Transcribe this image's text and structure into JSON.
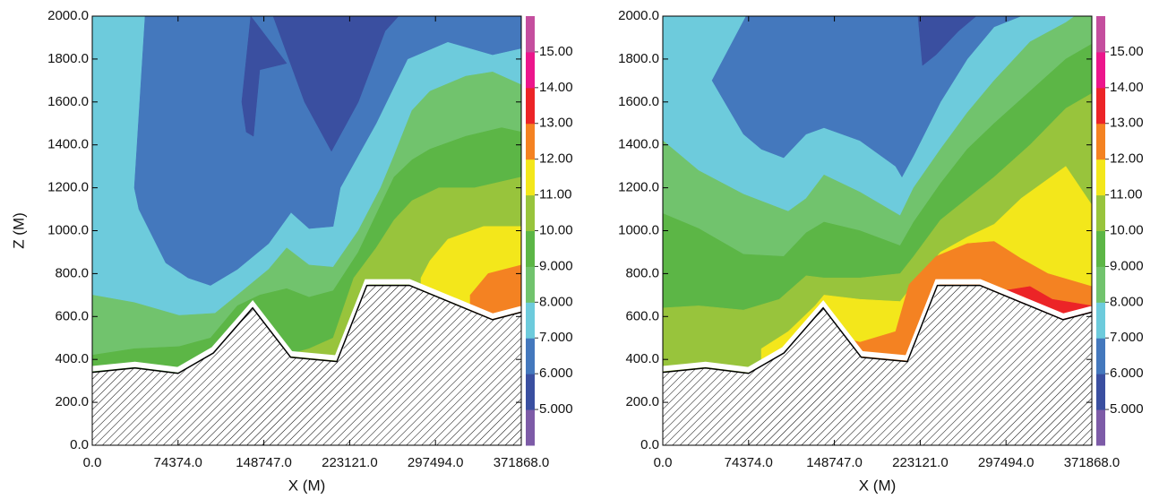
{
  "chart_data": [
    {
      "type": "contour",
      "xlabel": "X (M)",
      "ylabel": "Z (M)",
      "xlim": [
        0,
        371868
      ],
      "ylim": [
        0,
        2000
      ],
      "xticks": [
        {
          "value": 0,
          "label": "0.0"
        },
        {
          "value": 74374,
          "label": "74374.0"
        },
        {
          "value": 148747,
          "label": "148747.0"
        },
        {
          "value": 223121,
          "label": "223121.0"
        },
        {
          "value": 297494,
          "label": "297494.0"
        },
        {
          "value": 371868,
          "label": "371868.0"
        }
      ],
      "yticks": [
        {
          "value": 0,
          "label": "0.0"
        },
        {
          "value": 200,
          "label": "200.0"
        },
        {
          "value": 400,
          "label": "400.0"
        },
        {
          "value": 600,
          "label": "600.0"
        },
        {
          "value": 800,
          "label": "800.0"
        },
        {
          "value": 1000,
          "label": "1000.0"
        },
        {
          "value": 1200,
          "label": "1200.0"
        },
        {
          "value": 1400,
          "label": "1400.0"
        },
        {
          "value": 1600,
          "label": "1600.0"
        },
        {
          "value": 1800,
          "label": "1800.0"
        },
        {
          "value": 2000,
          "label": "2000.0"
        }
      ],
      "clim": [
        4,
        16
      ],
      "cticks": [
        {
          "value": 5,
          "label": "5.000"
        },
        {
          "value": 6,
          "label": "6.000"
        },
        {
          "value": 7,
          "label": "7.000"
        },
        {
          "value": 8,
          "label": "8.000"
        },
        {
          "value": 9,
          "label": "9.000"
        },
        {
          "value": 10,
          "label": "10.00"
        },
        {
          "value": 11,
          "label": "11.00"
        },
        {
          "value": 12,
          "label": "12.00"
        },
        {
          "value": 13,
          "label": "13.00"
        },
        {
          "value": 14,
          "label": "14.00"
        },
        {
          "value": 15,
          "label": "15.00"
        }
      ],
      "band_colors": [
        "#7d5ba7",
        "#3a4fa0",
        "#4478bd",
        "#6dcbdc",
        "#71c36d",
        "#5cb646",
        "#98c43c",
        "#f3e71b",
        "#f48222",
        "#ec2427",
        "#ec168c",
        "#c44e9e"
      ],
      "regions": [
        {
          "level": 7,
          "x": [
            0,
            371868,
            371868,
            0
          ],
          "z": [
            0,
            0,
            2000,
            2000
          ]
        },
        {
          "level": 6,
          "x": [
            45800,
            36500,
            40400,
            63700,
            83100,
            102500,
            125800,
            152900,
            172300,
            187900,
            208800,
            215000,
            246100,
            273300,
            308200,
            347000,
            371868,
            371868
          ],
          "z": [
            2000,
            1200,
            1100,
            850,
            780,
            745,
            820,
            940,
            1085,
            1010,
            1020,
            1200,
            1500,
            1800,
            1880,
            1820,
            1850,
            2000
          ]
        },
        {
          "level": 5,
          "x": [
            156800,
            184000,
            207300,
            230600,
            253800,
            265500
          ],
          "z": [
            2000,
            1600,
            1370,
            1600,
            1930,
            2000
          ]
        },
        {
          "level": 5,
          "x": [
            137400,
            168500,
            145200,
            139700,
            133500,
            129600
          ],
          "z": [
            2000,
            1780,
            1750,
            1440,
            1460,
            1600
          ]
        },
        {
          "level": 8,
          "x": [
            0,
            36500,
            75300,
            106400,
            125800,
            152900,
            168500,
            187900,
            208800,
            230600,
            250000,
            261600,
            277100,
            292700,
            323700,
            347000,
            371868,
            371868,
            0
          ],
          "z": [
            700,
            665,
            605,
            615,
            700,
            820,
            920,
            840,
            830,
            1000,
            1200,
            1350,
            1560,
            1650,
            1720,
            1740,
            1680,
            0,
            0
          ]
        },
        {
          "level": 9,
          "x": [
            0,
            36500,
            75300,
            102500,
            125800,
            145200,
            168500,
            187900,
            208800,
            230600,
            250000,
            261600,
            277100,
            292700,
            323700,
            354800,
            371868,
            371868,
            0
          ],
          "z": [
            420,
            450,
            460,
            500,
            650,
            700,
            730,
            690,
            720,
            900,
            1120,
            1250,
            1330,
            1380,
            1440,
            1480,
            1460,
            0,
            0
          ]
        },
        {
          "level": 10,
          "x": [
            168500,
            187900,
            208800,
            226700,
            246100,
            261600,
            277100,
            300400,
            331500,
            371868,
            371868,
            168500
          ],
          "z": [
            420,
            450,
            500,
            780,
            920,
            1050,
            1140,
            1200,
            1200,
            1250,
            0,
            0
          ]
        },
        {
          "level": 11,
          "x": [
            284900,
            292700,
            308200,
            339200,
            371868,
            371868,
            284900
          ],
          "z": [
            780,
            860,
            960,
            1020,
            1020,
            0,
            0
          ]
        },
        {
          "level": 12,
          "x": [
            327600,
            343100,
            371868,
            371868,
            327600
          ],
          "z": [
            700,
            800,
            840,
            0,
            0
          ]
        }
      ],
      "terrain": {
        "x": [
          0,
          37000,
          74374,
          105000,
          139000,
          172000,
          212000,
          238000,
          275000,
          347000,
          371868
        ],
        "z": [
          340,
          360,
          335,
          430,
          640,
          410,
          390,
          745,
          745,
          585,
          620
        ]
      }
    },
    {
      "type": "contour",
      "xlabel": "X (M)",
      "xlim": [
        0,
        371868
      ],
      "ylim": [
        0,
        2000
      ],
      "xticks": [
        {
          "value": 0,
          "label": "0.0"
        },
        {
          "value": 74374,
          "label": "74374.0"
        },
        {
          "value": 148747,
          "label": "148747.0"
        },
        {
          "value": 223121,
          "label": "223121.0"
        },
        {
          "value": 297494,
          "label": "297494.0"
        },
        {
          "value": 371868,
          "label": "371868.0"
        }
      ],
      "yticks": [
        {
          "value": 0,
          "label": "0.0"
        },
        {
          "value": 200,
          "label": "200.0"
        },
        {
          "value": 400,
          "label": "400.0"
        },
        {
          "value": 600,
          "label": "600.0"
        },
        {
          "value": 800,
          "label": "800.0"
        },
        {
          "value": 1000,
          "label": "1000.0"
        },
        {
          "value": 1200,
          "label": "1200.0"
        },
        {
          "value": 1400,
          "label": "1400.0"
        },
        {
          "value": 1600,
          "label": "1600.0"
        },
        {
          "value": 1800,
          "label": "1800.0"
        },
        {
          "value": 2000,
          "label": "2000.0"
        }
      ],
      "clim": [
        4,
        16
      ],
      "cticks": [
        {
          "value": 5,
          "label": "5.000"
        },
        {
          "value": 6,
          "label": "6.000"
        },
        {
          "value": 7,
          "label": "7.000"
        },
        {
          "value": 8,
          "label": "8.000"
        },
        {
          "value": 9,
          "label": "9.000"
        },
        {
          "value": 10,
          "label": "10.00"
        },
        {
          "value": 11,
          "label": "11.00"
        },
        {
          "value": 12,
          "label": "12.00"
        },
        {
          "value": 13,
          "label": "13.00"
        },
        {
          "value": 14,
          "label": "14.00"
        },
        {
          "value": 15,
          "label": "15.00"
        }
      ],
      "band_colors": [
        "#7d5ba7",
        "#3a4fa0",
        "#4478bd",
        "#6dcbdc",
        "#71c36d",
        "#5cb646",
        "#98c43c",
        "#f3e71b",
        "#f48222",
        "#ec2427",
        "#ec168c",
        "#c44e9e"
      ],
      "regions": [
        {
          "level": 7,
          "x": [
            0,
            371868,
            371868,
            0
          ],
          "z": [
            0,
            0,
            2000,
            2000
          ]
        },
        {
          "level": 6,
          "x": [
            72200,
            42700,
            69900,
            85400,
            104800,
            124200,
            139700,
            170800,
            201800,
            207300,
            217400,
            240700,
            263900,
            287200,
            310500
          ],
          "z": [
            2000,
            1700,
            1450,
            1380,
            1340,
            1450,
            1480,
            1420,
            1300,
            1250,
            1350,
            1600,
            1800,
            1950,
            2000
          ]
        },
        {
          "level": 5,
          "x": [
            221200,
            225100,
            236800,
            256200,
            271700
          ],
          "z": [
            2000,
            1770,
            1820,
            1930,
            2000
          ]
        },
        {
          "level": 8,
          "x": [
            0,
            31100,
            69900,
            108700,
            124200,
            139700,
            170800,
            205700,
            217400,
            240700,
            263900,
            287200,
            318300,
            349300,
            357100,
            371868,
            371868,
            0
          ],
          "z": [
            1420,
            1280,
            1170,
            1090,
            1150,
            1260,
            1180,
            1070,
            1200,
            1380,
            1550,
            1700,
            1880,
            1970,
            2000,
            2000,
            0,
            0
          ]
        },
        {
          "level": 9,
          "x": [
            0,
            31100,
            69900,
            104800,
            124200,
            139700,
            170800,
            205700,
            217400,
            240700,
            263900,
            287200,
            318300,
            349300,
            371868,
            371868,
            0
          ],
          "z": [
            1080,
            1010,
            890,
            880,
            990,
            1040,
            1000,
            930,
            1040,
            1220,
            1380,
            1500,
            1650,
            1800,
            1870,
            0,
            0
          ]
        },
        {
          "level": 10,
          "x": [
            0,
            31100,
            69900,
            100900,
            124200,
            139700,
            170800,
            205700,
            217400,
            240700,
            263900,
            287200,
            318300,
            349300,
            371868,
            371868,
            0
          ],
          "z": [
            640,
            650,
            630,
            680,
            790,
            780,
            780,
            800,
            880,
            1050,
            1150,
            1250,
            1400,
            1570,
            1640,
            0,
            0
          ]
        },
        {
          "level": 11,
          "x": [
            85400,
            108700,
            132000,
            139700,
            170800,
            205700,
            217400,
            240700,
            263900,
            287200,
            310500,
            333800,
            349300,
            371868,
            371868,
            85400
          ],
          "z": [
            450,
            530,
            650,
            700,
            680,
            670,
            750,
            900,
            970,
            1030,
            1150,
            1240,
            1300,
            1120,
            0,
            0
          ]
        },
        {
          "level": 12,
          "x": [
            143600,
            151400,
            170800,
            201800,
            213500,
            236800,
            263900,
            287200,
            310500,
            333800,
            371868,
            371868,
            143600
          ],
          "z": [
            520,
            510,
            480,
            530,
            750,
            880,
            940,
            950,
            870,
            800,
            740,
            0,
            0
          ]
        },
        {
          "level": 13,
          "x": [
            295000,
            318300,
            337700,
            371868,
            371868,
            295000
          ],
          "z": [
            720,
            740,
            680,
            650,
            0,
            0
          ]
        }
      ],
      "terrain": {
        "x": [
          0,
          37000,
          74374,
          105000,
          139000,
          172000,
          212000,
          238000,
          275000,
          347000,
          371868
        ],
        "z": [
          340,
          360,
          335,
          430,
          640,
          410,
          390,
          745,
          745,
          585,
          620
        ]
      }
    }
  ]
}
